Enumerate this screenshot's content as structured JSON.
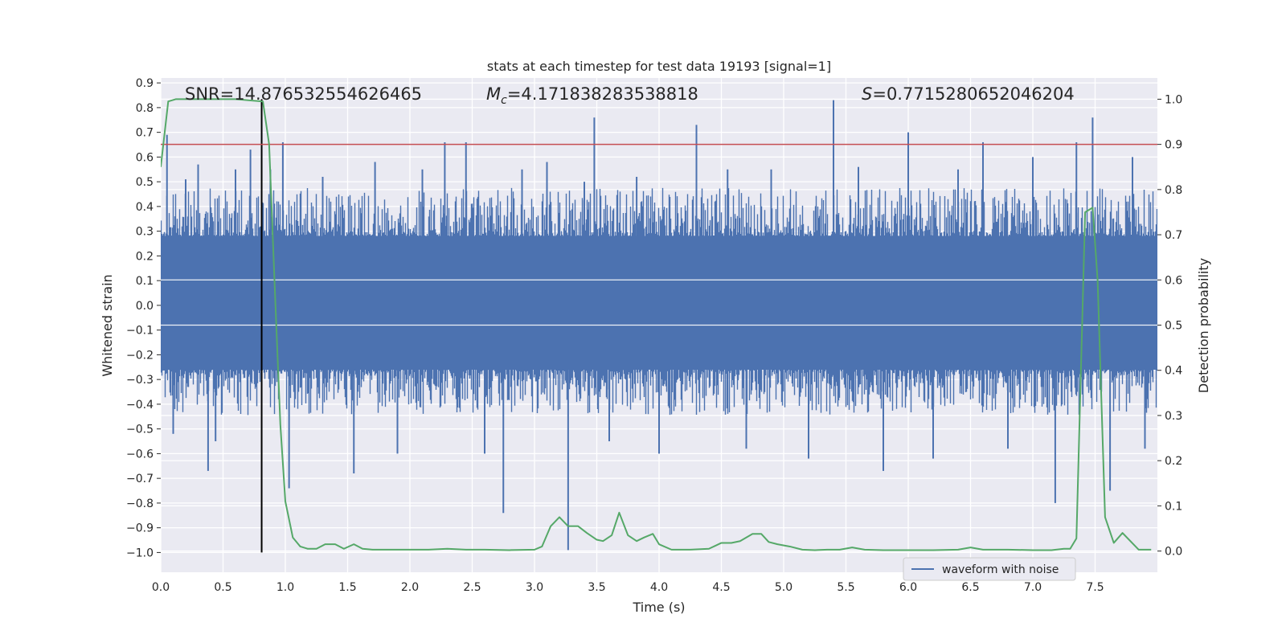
{
  "chart_data": {
    "type": "line",
    "title": "stats at each timestep for test data 19193 [signal=1]",
    "xlabel": "Time (s)",
    "ylabel": "Whitened strain",
    "y2label": "Detection probability",
    "xlim": [
      0.0,
      8.0
    ],
    "ylim": [
      -1.08,
      0.92
    ],
    "y2lim": [
      -0.047,
      1.047
    ],
    "xticks": [
      "0.0",
      "0.5",
      "1.0",
      "1.5",
      "2.0",
      "2.5",
      "3.0",
      "3.5",
      "4.0",
      "4.5",
      "5.0",
      "5.5",
      "6.0",
      "6.5",
      "7.0",
      "7.5"
    ],
    "yticks": [
      "0.9",
      "0.8",
      "0.7",
      "0.6",
      "0.5",
      "0.4",
      "0.3",
      "0.2",
      "0.1",
      "0.0",
      "−0.1",
      "−0.2",
      "−0.3",
      "−0.4",
      "−0.5",
      "−0.6",
      "−0.7",
      "−0.8",
      "−0.9",
      "−1.0"
    ],
    "y2ticks": [
      "1.0",
      "0.9",
      "0.8",
      "0.7",
      "0.6",
      "0.5",
      "0.4",
      "0.3",
      "0.2",
      "0.1",
      "0.0"
    ],
    "annotations": {
      "snr": "SNR=14.876532554626465",
      "mc_symbol": "M",
      "mc_sub": "c",
      "mc_value": "=4.171838283538818",
      "s_symbol": "S",
      "s_value": "=0.7715280652046204"
    },
    "legend": {
      "label": "waveform with noise",
      "position": "lower-right"
    },
    "threshold": {
      "axis": "y2",
      "value": 0.9,
      "color": "#c44e52"
    },
    "marker_time": 0.81,
    "colors": {
      "waveform": "#4c72b0",
      "probability": "#55a868",
      "threshold": "#c44e52",
      "marker": "#000000",
      "background": "#eaeaf2"
    },
    "series": [
      {
        "name": "waveform with noise",
        "axis": "y",
        "envelope": {
          "core_min": -0.26,
          "core_max": 0.28,
          "typical_peak": 0.45,
          "typical_trough": -0.42,
          "duration": 8.0
        },
        "spikes": [
          [
            0.05,
            0.69
          ],
          [
            0.1,
            -0.52
          ],
          [
            0.2,
            0.51
          ],
          [
            0.3,
            0.57
          ],
          [
            0.38,
            -0.67
          ],
          [
            0.44,
            -0.55
          ],
          [
            0.6,
            0.55
          ],
          [
            0.72,
            0.63
          ],
          [
            0.88,
            0.55
          ],
          [
            0.98,
            0.66
          ],
          [
            1.03,
            -0.74
          ],
          [
            1.3,
            0.52
          ],
          [
            1.55,
            -0.68
          ],
          [
            1.72,
            0.58
          ],
          [
            1.9,
            -0.6
          ],
          [
            2.1,
            0.55
          ],
          [
            2.28,
            0.66
          ],
          [
            2.45,
            0.66
          ],
          [
            2.6,
            -0.6
          ],
          [
            2.75,
            -0.84
          ],
          [
            2.9,
            0.55
          ],
          [
            3.1,
            0.58
          ],
          [
            3.27,
            -0.99
          ],
          [
            3.4,
            0.5
          ],
          [
            3.48,
            0.76
          ],
          [
            3.6,
            -0.55
          ],
          [
            3.82,
            0.52
          ],
          [
            4.0,
            -0.6
          ],
          [
            4.3,
            0.73
          ],
          [
            4.55,
            0.55
          ],
          [
            4.7,
            -0.58
          ],
          [
            4.9,
            0.55
          ],
          [
            5.2,
            -0.62
          ],
          [
            5.4,
            0.83
          ],
          [
            5.6,
            0.56
          ],
          [
            5.8,
            -0.67
          ],
          [
            6.0,
            0.7
          ],
          [
            6.2,
            -0.62
          ],
          [
            6.4,
            0.55
          ],
          [
            6.6,
            0.66
          ],
          [
            6.8,
            -0.58
          ],
          [
            7.0,
            0.6
          ],
          [
            7.18,
            -0.8
          ],
          [
            7.35,
            0.66
          ],
          [
            7.48,
            0.76
          ],
          [
            7.62,
            -0.75
          ],
          [
            7.8,
            0.6
          ],
          [
            7.9,
            -0.58
          ]
        ]
      },
      {
        "name": "detection probability",
        "axis": "y2",
        "x": [
          0.0,
          0.06,
          0.12,
          0.2,
          0.4,
          0.6,
          0.82,
          0.87,
          0.92,
          0.96,
          1.0,
          1.06,
          1.12,
          1.18,
          1.25,
          1.32,
          1.4,
          1.47,
          1.55,
          1.62,
          1.7,
          1.8,
          1.9,
          2.0,
          2.15,
          2.3,
          2.45,
          2.6,
          2.8,
          3.0,
          3.06,
          3.13,
          3.2,
          3.27,
          3.35,
          3.42,
          3.5,
          3.55,
          3.62,
          3.68,
          3.75,
          3.82,
          3.88,
          3.95,
          4.0,
          4.1,
          4.25,
          4.4,
          4.5,
          4.58,
          4.65,
          4.75,
          4.82,
          4.88,
          4.95,
          5.05,
          5.15,
          5.25,
          5.35,
          5.45,
          5.55,
          5.65,
          5.8,
          6.0,
          6.2,
          6.4,
          6.5,
          6.6,
          6.8,
          7.0,
          7.15,
          7.25,
          7.3,
          7.35,
          7.42,
          7.48,
          7.52,
          7.58,
          7.65,
          7.72,
          7.85,
          7.95
        ],
        "values": [
          0.85,
          0.995,
          1.0,
          1.0,
          1.0,
          1.0,
          0.995,
          0.9,
          0.55,
          0.28,
          0.11,
          0.03,
          0.01,
          0.005,
          0.005,
          0.015,
          0.015,
          0.005,
          0.015,
          0.005,
          0.003,
          0.003,
          0.003,
          0.003,
          0.003,
          0.005,
          0.003,
          0.003,
          0.002,
          0.003,
          0.01,
          0.055,
          0.075,
          0.055,
          0.055,
          0.04,
          0.025,
          0.022,
          0.035,
          0.085,
          0.035,
          0.022,
          0.03,
          0.038,
          0.015,
          0.003,
          0.003,
          0.005,
          0.018,
          0.018,
          0.022,
          0.038,
          0.038,
          0.02,
          0.015,
          0.01,
          0.003,
          0.002,
          0.003,
          0.003,
          0.008,
          0.003,
          0.002,
          0.002,
          0.002,
          0.003,
          0.008,
          0.003,
          0.003,
          0.002,
          0.002,
          0.005,
          0.005,
          0.028,
          0.75,
          0.76,
          0.6,
          0.075,
          0.018,
          0.04,
          0.003,
          0.003
        ]
      }
    ]
  }
}
